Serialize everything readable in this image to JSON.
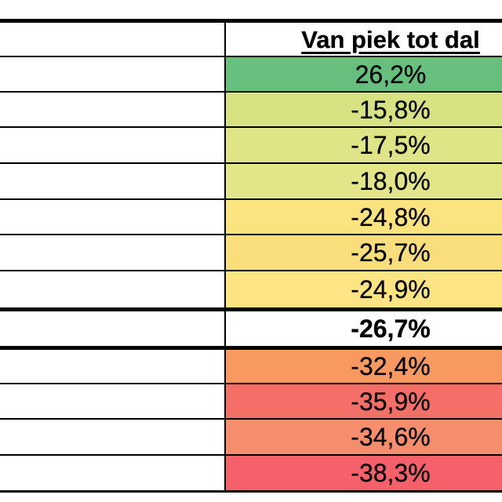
{
  "table": {
    "header": {
      "label": "Van piek tot dal"
    },
    "rows": [
      {
        "value": "26,2%",
        "color": "#66BF7C",
        "bold": false
      },
      {
        "value": "-15,8%",
        "color": "#D8E282",
        "bold": false
      },
      {
        "value": "-17,5%",
        "color": "#DFE487",
        "bold": false
      },
      {
        "value": "-18,0%",
        "color": "#E2E689",
        "bold": false
      },
      {
        "value": "-24,8%",
        "color": "#FBE380",
        "bold": false
      },
      {
        "value": "-25,7%",
        "color": "#FBDE7C",
        "bold": false
      },
      {
        "value": "-24,9%",
        "color": "#FEE482",
        "bold": false
      },
      {
        "value": "-26,7%",
        "color": "#FFFFFF",
        "bold": true
      },
      {
        "value": "-32,4%",
        "color": "#F79961",
        "bold": false
      },
      {
        "value": "-35,9%",
        "color": "#F56E67",
        "bold": false
      },
      {
        "value": "-34,6%",
        "color": "#F68D6C",
        "bold": false
      },
      {
        "value": "-38,3%",
        "color": "#F5606A",
        "bold": false
      }
    ],
    "colors": {
      "border": "#000000",
      "text": "#000000",
      "background": "#FFFFFF"
    }
  },
  "chart_data": {
    "type": "table",
    "title": "Van piek tot dal",
    "columns": [
      "",
      "Van piek tot dal"
    ],
    "values_pct": [
      26.2,
      -15.8,
      -17.5,
      -18.0,
      -24.8,
      -25.7,
      -24.9,
      -26.7,
      -32.4,
      -35.9,
      -34.6,
      -38.3
    ],
    "value_labels": [
      "26,2%",
      "-15,8%",
      "-17,5%",
      "-18,0%",
      "-24,8%",
      "-25,7%",
      "-24,9%",
      "-26,7%",
      "-32,4%",
      "-35,9%",
      "-34,6%",
      "-38,3%"
    ],
    "emphasized_row_index": 7,
    "heatmap": "3-color scale green (positive) to yellow to red (most negative); emphasized bold row -26,7% on white",
    "notes": "Left label column is empty/cropped; table clipped at right edge of image"
  }
}
